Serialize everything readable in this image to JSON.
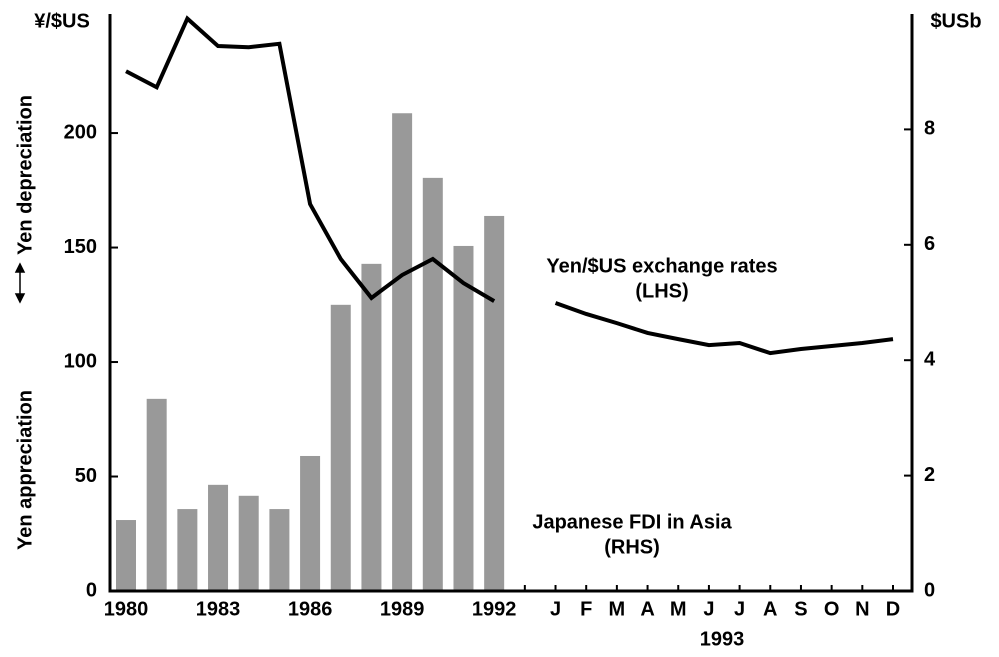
{
  "chart_data": {
    "type": "bar_line",
    "ylabel_top": "¥/$US",
    "y2label_top": "$USb",
    "ylabel_low": "Yen appreciation",
    "ylabel_high": "Yen depreciation",
    "categories": [
      "1980",
      null,
      null,
      "1983",
      null,
      null,
      "1986",
      null,
      null,
      "1989",
      null,
      null,
      "1992",
      null,
      "J",
      "F",
      "M",
      "A",
      "M",
      "J",
      "J",
      "A",
      "S",
      "O",
      "N",
      "D"
    ],
    "x_group_label": "1993",
    "series": [
      {
        "name": "Japanese FDI in Asia",
        "note": "(RHS)",
        "type": "bar",
        "axis": "y2",
        "color": "#999999",
        "values": [
          1.23,
          3.33,
          1.42,
          1.84,
          1.65,
          1.42,
          2.34,
          4.96,
          5.67,
          8.28,
          7.16,
          5.98,
          6.5,
          null,
          null,
          null,
          null,
          null,
          null,
          null,
          null,
          null,
          null,
          null,
          null,
          null
        ]
      },
      {
        "name": "Yen/$US exchange rates",
        "note": "(LHS)",
        "type": "line",
        "axis": "y",
        "color": "#000000",
        "values": [
          227,
          220,
          250,
          238,
          237.5,
          239,
          169,
          145,
          128,
          138,
          145,
          134.5,
          126.6,
          null,
          125.8,
          121,
          117,
          112.7,
          110,
          107.4,
          108.3,
          103.9,
          105.7,
          107,
          108.3,
          110
        ]
      }
    ],
    "ylim": [
      0,
      252
    ],
    "yticks": [
      0,
      50,
      100,
      150,
      200
    ],
    "y2lim": [
      0,
      10
    ],
    "y2ticks": [
      0,
      2,
      4,
      6,
      8
    ]
  }
}
